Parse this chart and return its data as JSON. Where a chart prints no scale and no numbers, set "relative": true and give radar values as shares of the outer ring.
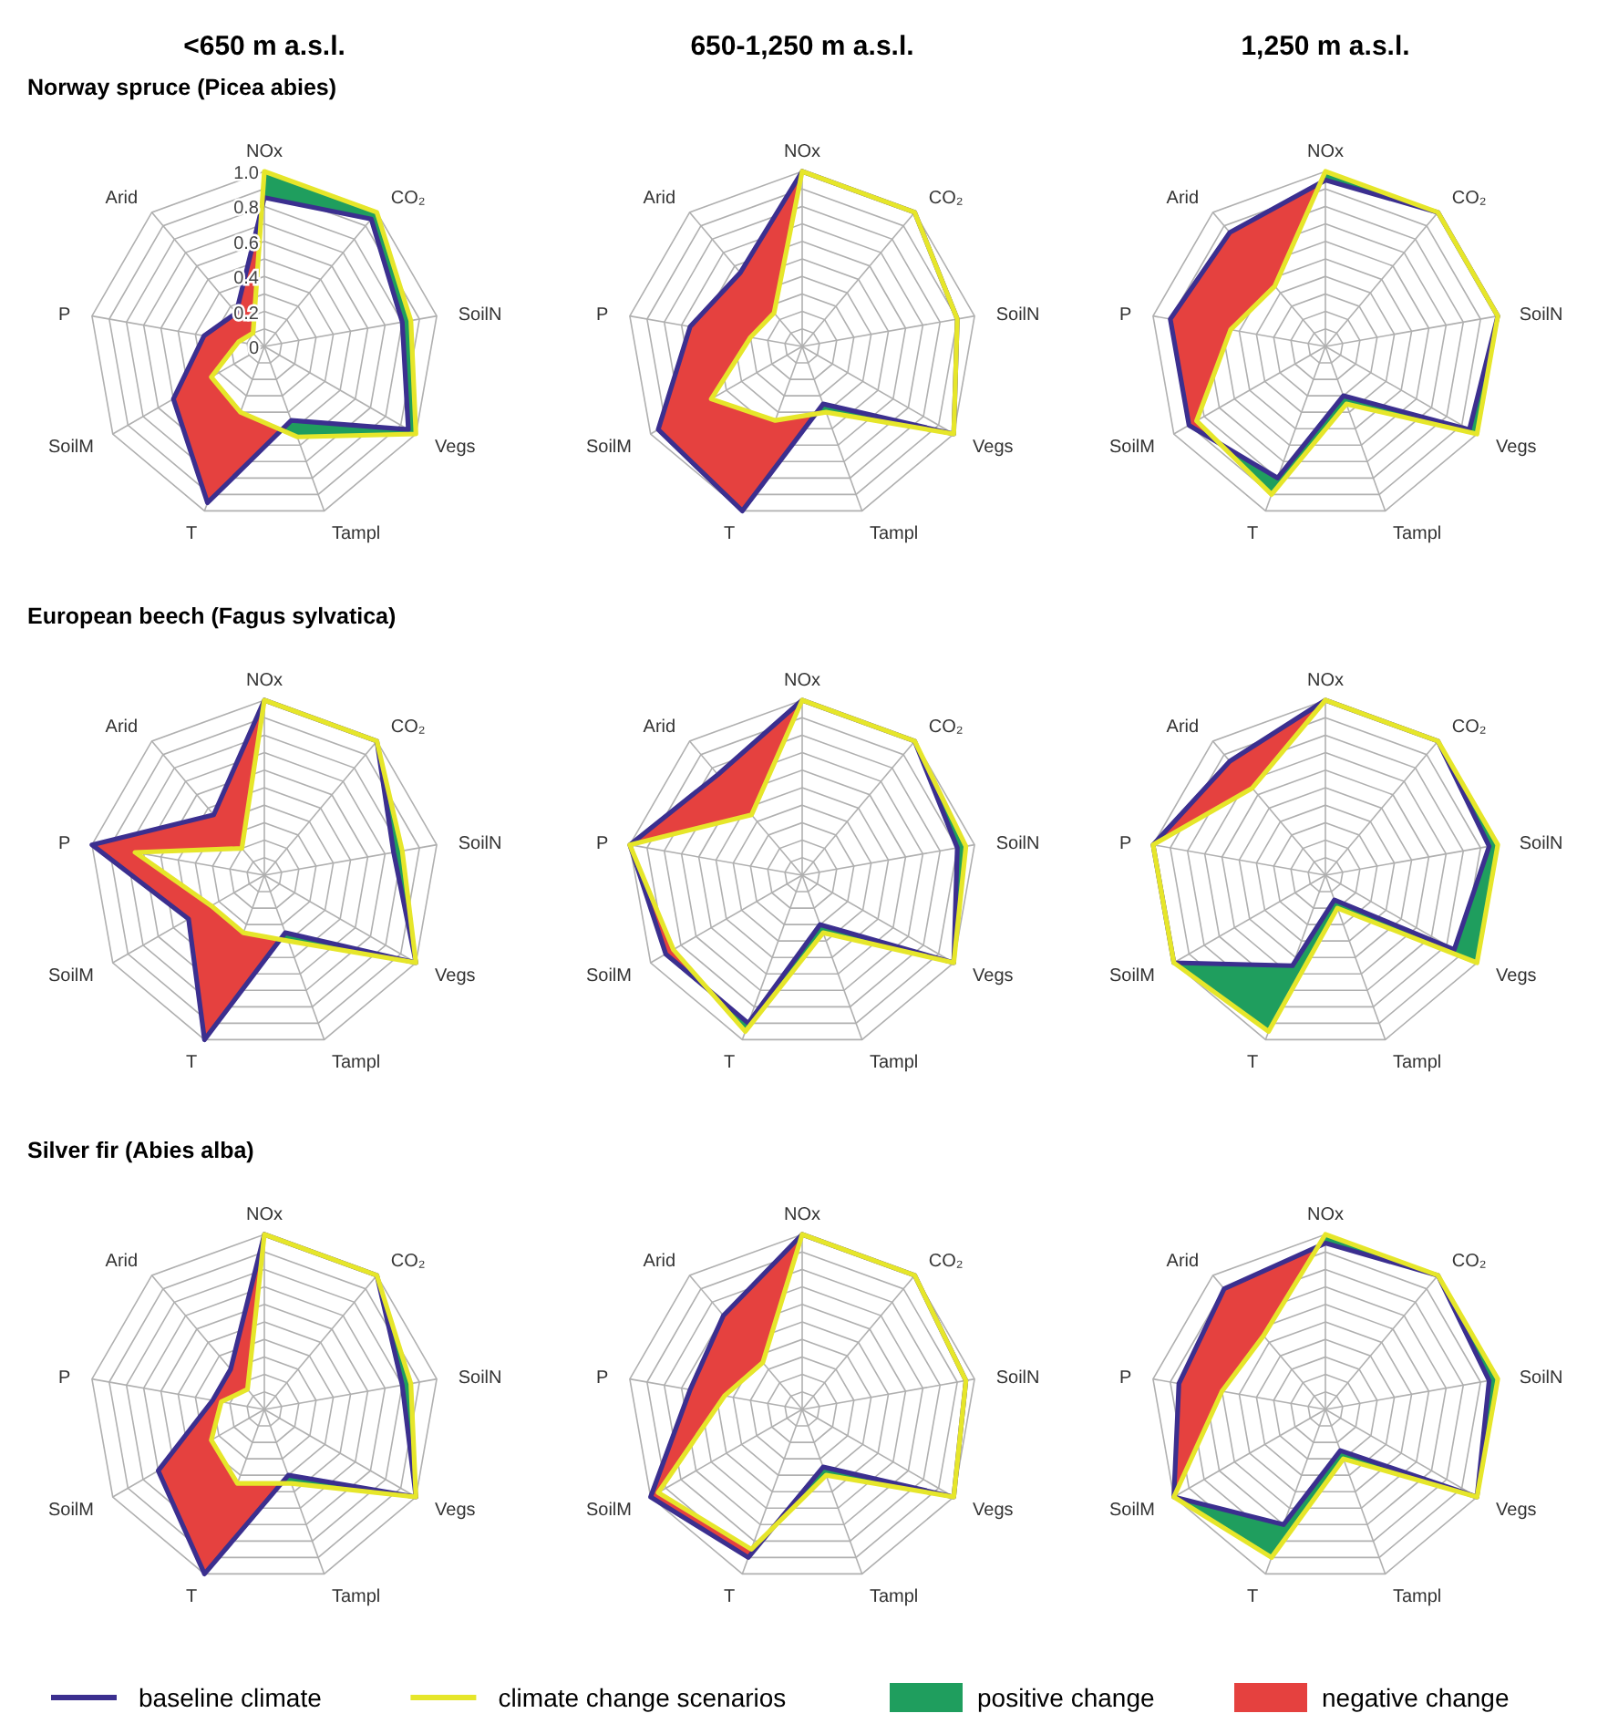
{
  "chart_data": [
    {
      "type": "radar",
      "title": "<650 m a.s.l.",
      "subtitle": "Norway spruce (Picea abies)",
      "categories": [
        "NOx",
        "CO₂",
        "SoilN",
        "Vegs",
        "Tampl",
        "T",
        "SoilM",
        "P",
        "Arid"
      ],
      "ylim": [
        0,
        1
      ],
      "yticks": [
        0,
        0.2,
        0.4,
        0.6,
        0.8,
        {
          "value": 1,
          "label": "1.0"
        }
      ],
      "grid": true,
      "legend": "bottom",
      "bands": [
        {
          "label": "positive change",
          "color": "#1f9e5e"
        },
        {
          "label": "negative change",
          "color": "#e5413f"
        }
      ],
      "series": [
        {
          "name": "baseline climate",
          "color": "#3b2f8f",
          "values": [
            0.85,
            0.95,
            0.8,
            0.95,
            0.45,
            0.95,
            0.6,
            0.35,
            0.25
          ]
        },
        {
          "name": "climate change scenarios",
          "color": "#e6e62a",
          "values": [
            1,
            1,
            0.85,
            1,
            0.55,
            0.4,
            0.35,
            0.15,
            0.1
          ]
        }
      ]
    },
    {
      "type": "radar",
      "title": "650-1,250 m a.s.l.",
      "categories": [
        "NOx",
        "CO₂",
        "SoilN",
        "Vegs",
        "Tampl",
        "T",
        "SoilM",
        "P",
        "Arid"
      ],
      "relative": true,
      "grid": true,
      "bands": [
        {
          "color": "#1f9e5e"
        },
        {
          "color": "#e5413f"
        }
      ],
      "series": [
        {
          "color": "#3b2f8f",
          "values": [
            1,
            1,
            0.9,
            1,
            0.35,
            1,
            0.95,
            0.65,
            0.55
          ]
        },
        {
          "color": "#e6e62a",
          "values": [
            1,
            1,
            0.9,
            1,
            0.4,
            0.45,
            0.6,
            0.3,
            0.25
          ]
        }
      ]
    },
    {
      "type": "radar",
      "title": "1,250 m a.s.l.",
      "categories": [
        "NOx",
        "CO₂",
        "SoilN",
        "Vegs",
        "Tampl",
        "T",
        "SoilM",
        "P",
        "Arid"
      ],
      "relative": true,
      "grid": true,
      "bands": [
        {
          "color": "#1f9e5e"
        },
        {
          "color": "#e5413f"
        }
      ],
      "series": [
        {
          "color": "#3b2f8f",
          "values": [
            0.95,
            1,
            1,
            0.95,
            0.3,
            0.8,
            0.9,
            0.9,
            0.85
          ]
        },
        {
          "color": "#e6e62a",
          "values": [
            1,
            1,
            1,
            1,
            0.35,
            0.9,
            0.85,
            0.55,
            0.45
          ]
        }
      ]
    },
    {
      "type": "radar",
      "subtitle": "European beech (Fagus sylvatica)",
      "categories": [
        "NOx",
        "CO₂",
        "SoilN",
        "Vegs",
        "Tampl",
        "T",
        "SoilM",
        "P",
        "Arid"
      ],
      "relative": true,
      "grid": true,
      "bands": [
        {
          "color": "#1f9e5e"
        },
        {
          "color": "#e5413f"
        }
      ],
      "series": [
        {
          "color": "#3b2f8f",
          "values": [
            1,
            1,
            0.75,
            1,
            0.35,
            1,
            0.5,
            1,
            0.45
          ]
        },
        {
          "color": "#e6e62a",
          "values": [
            1,
            1,
            0.8,
            1,
            0.4,
            0.35,
            0.35,
            0.75,
            0.2
          ]
        }
      ]
    },
    {
      "type": "radar",
      "categories": [
        "NOx",
        "CO₂",
        "SoilN",
        "Vegs",
        "Tampl",
        "T",
        "SoilM",
        "P",
        "Arid"
      ],
      "relative": true,
      "grid": true,
      "bands": [
        {
          "color": "#1f9e5e"
        },
        {
          "color": "#e5413f"
        }
      ],
      "series": [
        {
          "color": "#3b2f8f",
          "values": [
            1,
            1,
            0.9,
            1,
            0.3,
            0.9,
            0.9,
            1,
            0.75
          ]
        },
        {
          "color": "#e6e62a",
          "values": [
            1,
            1,
            0.95,
            1,
            0.35,
            0.95,
            0.85,
            1,
            0.45
          ]
        }
      ]
    },
    {
      "type": "radar",
      "categories": [
        "NOx",
        "CO₂",
        "SoilN",
        "Vegs",
        "Tampl",
        "T",
        "SoilM",
        "P",
        "Arid"
      ],
      "relative": true,
      "grid": true,
      "bands": [
        {
          "color": "#1f9e5e"
        },
        {
          "color": "#e5413f"
        }
      ],
      "series": [
        {
          "color": "#3b2f8f",
          "values": [
            1,
            1,
            0.95,
            0.85,
            0.15,
            0.55,
            1,
            1,
            0.85
          ]
        },
        {
          "color": "#e6e62a",
          "values": [
            1,
            1,
            1,
            1,
            0.2,
            0.95,
            1,
            1,
            0.65
          ]
        }
      ]
    },
    {
      "type": "radar",
      "subtitle": "Silver fir (Abies alba)",
      "categories": [
        "NOx",
        "CO₂",
        "SoilN",
        "Vegs",
        "Tampl",
        "T",
        "SoilM",
        "P",
        "Arid"
      ],
      "relative": true,
      "grid": true,
      "bands": [
        {
          "color": "#1f9e5e"
        },
        {
          "color": "#e5413f"
        }
      ],
      "series": [
        {
          "color": "#3b2f8f",
          "values": [
            1,
            1,
            0.8,
            1,
            0.4,
            1,
            0.7,
            0.3,
            0.3
          ]
        },
        {
          "color": "#e6e62a",
          "values": [
            1,
            1,
            0.85,
            1,
            0.45,
            0.45,
            0.35,
            0.25,
            0.15
          ]
        }
      ]
    },
    {
      "type": "radar",
      "categories": [
        "NOx",
        "CO₂",
        "SoilN",
        "Vegs",
        "Tampl",
        "T",
        "SoilM",
        "P",
        "Arid"
      ],
      "relative": true,
      "grid": true,
      "bands": [
        {
          "color": "#1f9e5e"
        },
        {
          "color": "#e5413f"
        }
      ],
      "series": [
        {
          "color": "#3b2f8f",
          "values": [
            1,
            1,
            0.95,
            1,
            0.35,
            0.9,
            1,
            0.65,
            0.7
          ]
        },
        {
          "color": "#e6e62a",
          "values": [
            1,
            1,
            0.95,
            1,
            0.4,
            0.85,
            0.95,
            0.45,
            0.35
          ]
        }
      ]
    },
    {
      "type": "radar",
      "categories": [
        "NOx",
        "CO₂",
        "SoilN",
        "Vegs",
        "Tampl",
        "T",
        "SoilM",
        "P",
        "Arid"
      ],
      "relative": true,
      "grid": true,
      "bands": [
        {
          "color": "#1f9e5e"
        },
        {
          "color": "#e5413f"
        }
      ],
      "series": [
        {
          "color": "#3b2f8f",
          "values": [
            0.95,
            1,
            0.95,
            1,
            0.25,
            0.7,
            1,
            0.85,
            0.9
          ]
        },
        {
          "color": "#e6e62a",
          "values": [
            1,
            1,
            1,
            1,
            0.3,
            0.9,
            1,
            0.6,
            0.55
          ]
        }
      ]
    }
  ]
}
